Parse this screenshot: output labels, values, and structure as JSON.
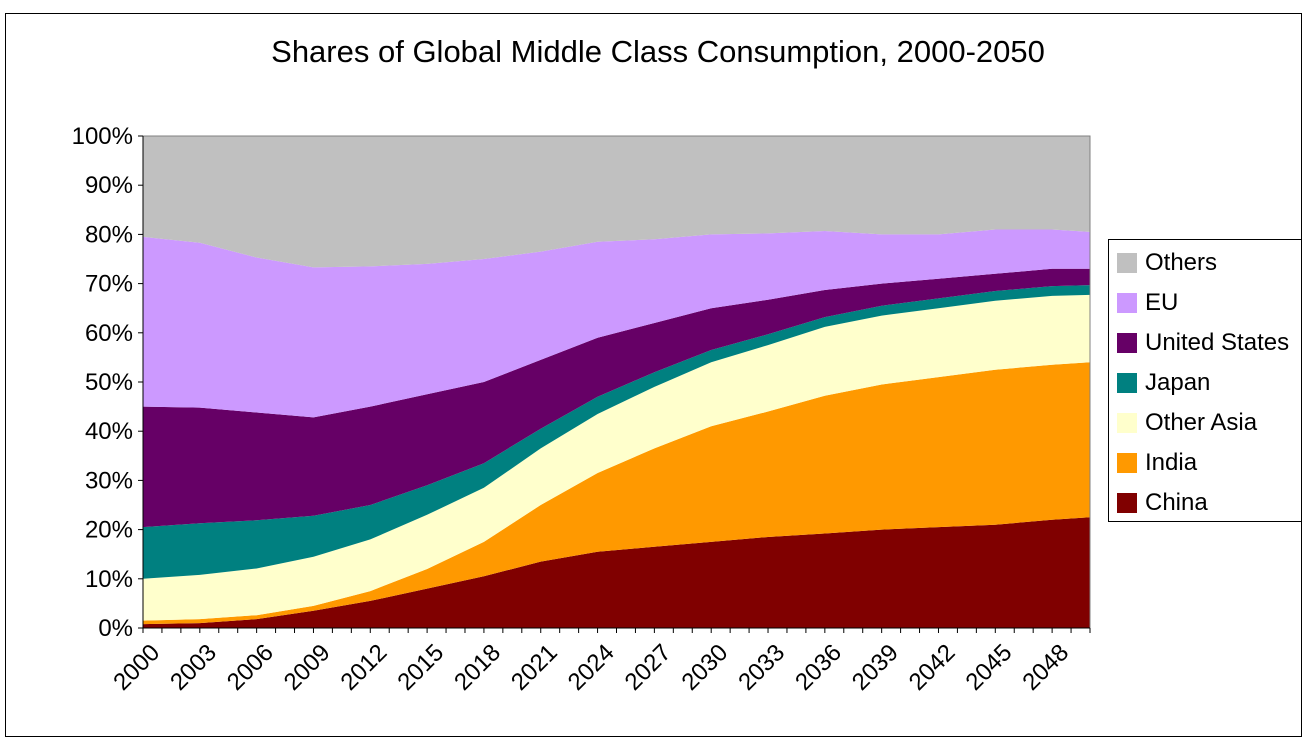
{
  "chart_data": {
    "type": "area",
    "stacked": "percent",
    "title": "Shares of Global Middle Class Consumption, 2000-2050",
    "xlabel": "",
    "ylabel": "",
    "ylim": [
      0,
      100
    ],
    "y_ticks": [
      "0%",
      "10%",
      "20%",
      "30%",
      "40%",
      "50%",
      "60%",
      "70%",
      "80%",
      "90%",
      "100%"
    ],
    "x_tick_labels": [
      "2000",
      "2003",
      "2006",
      "2009",
      "2012",
      "2015",
      "2018",
      "2021",
      "2024",
      "2027",
      "2030",
      "2033",
      "2036",
      "2039",
      "2042",
      "2045",
      "2048"
    ],
    "x": [
      2000,
      2003,
      2006,
      2009,
      2012,
      2015,
      2018,
      2021,
      2024,
      2027,
      2030,
      2033,
      2036,
      2039,
      2042,
      2045,
      2048,
      2050
    ],
    "legend_position": "right",
    "series": [
      {
        "name": "China",
        "color": "#800000",
        "values": [
          0.8,
          1.0,
          1.8,
          3.5,
          5.5,
          8.0,
          10.5,
          13.5,
          15.5,
          16.5,
          17.5,
          18.5,
          19.2,
          20.0,
          20.5,
          21.0,
          22.0,
          22.5
        ]
      },
      {
        "name": "India",
        "color": "#FF9900",
        "values": [
          0.7,
          0.8,
          0.8,
          1.0,
          2.0,
          4.0,
          7.0,
          11.5,
          16.0,
          20.0,
          23.5,
          25.5,
          28.0,
          29.5,
          30.5,
          31.5,
          31.5,
          31.5
        ]
      },
      {
        "name": "Other Asia",
        "color": "#FFFFCC",
        "values": [
          8.5,
          9.0,
          9.5,
          10.0,
          10.5,
          11.0,
          11.0,
          11.5,
          12.0,
          12.5,
          13.0,
          13.5,
          14.0,
          14.0,
          14.0,
          14.0,
          14.0,
          13.7
        ]
      },
      {
        "name": "Japan",
        "color": "#008080",
        "values": [
          10.5,
          10.5,
          9.8,
          8.3,
          7.0,
          6.0,
          5.0,
          4.0,
          3.5,
          3.0,
          2.5,
          2.2,
          2.0,
          2.0,
          2.0,
          2.0,
          2.0,
          2.0
        ]
      },
      {
        "name": "United States",
        "color": "#660066",
        "values": [
          24.5,
          23.5,
          21.9,
          20.0,
          20.0,
          18.5,
          16.5,
          14.0,
          12.0,
          10.0,
          8.5,
          7.0,
          5.5,
          4.5,
          4.0,
          3.5,
          3.5,
          3.3
        ]
      },
      {
        "name": "EU",
        "color": "#CC99FF",
        "values": [
          34.5,
          33.5,
          31.5,
          30.5,
          28.5,
          26.5,
          25.0,
          22.0,
          19.5,
          17.0,
          15.0,
          13.5,
          12.0,
          10.0,
          9.0,
          9.0,
          8.0,
          7.5
        ]
      },
      {
        "name": "Others",
        "color": "#C0C0C0",
        "values": [
          20.5,
          21.7,
          24.7,
          26.7,
          26.5,
          26.0,
          25.0,
          23.5,
          21.5,
          21.0,
          20.0,
          19.8,
          19.3,
          20.0,
          20.0,
          19.0,
          19.0,
          19.5
        ]
      }
    ]
  }
}
